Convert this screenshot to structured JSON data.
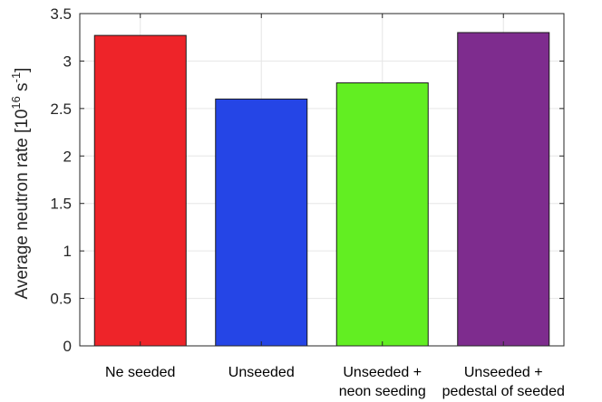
{
  "chart_data": {
    "type": "bar",
    "categories": [
      [
        "Ne seeded"
      ],
      [
        "Unseeded"
      ],
      [
        "Unseeded +",
        "neon seeding"
      ],
      [
        "Unseeded +",
        "pedestal of seeded"
      ]
    ],
    "values": [
      3.27,
      2.6,
      2.77,
      3.3
    ],
    "colors": [
      "#ee2429",
      "#2545e6",
      "#62ee22",
      "#7e2c8e"
    ],
    "ylabel": {
      "main": "Average neutron rate [10",
      "exp1": "16",
      "mid": " s",
      "exp2": "-1",
      "end": "]"
    },
    "ylim": [
      0,
      3.5
    ],
    "yticks": [
      "0",
      "0.5",
      "1",
      "1.5",
      "2",
      "2.5",
      "3",
      "3.5"
    ],
    "grid": true
  }
}
